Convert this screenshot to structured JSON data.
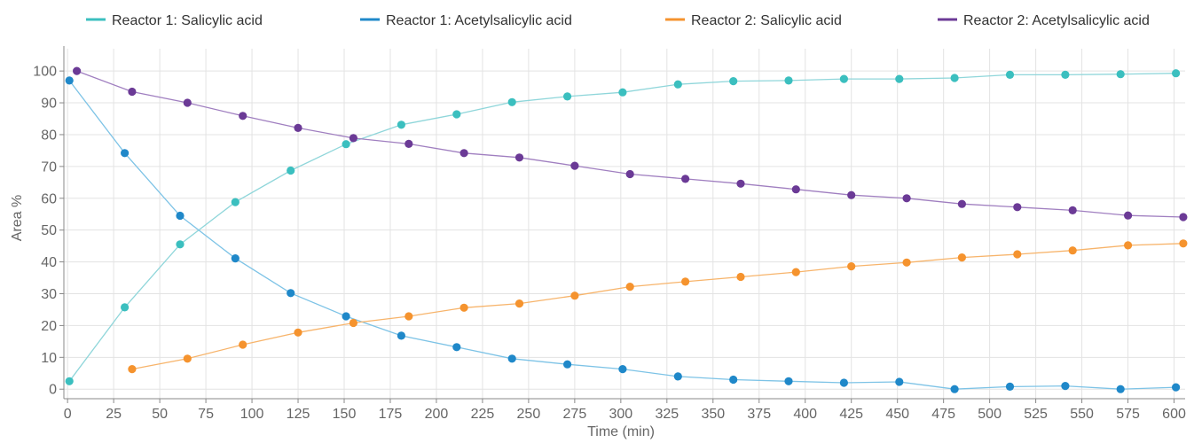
{
  "chart_data": {
    "type": "line",
    "title": "",
    "xlabel": "Time (min)",
    "ylabel": "Area %",
    "xlim": [
      -2,
      606
    ],
    "ylim": [
      -3,
      107
    ],
    "xticks": [
      0,
      25,
      50,
      75,
      100,
      125,
      150,
      175,
      200,
      225,
      250,
      275,
      300,
      325,
      350,
      375,
      400,
      425,
      450,
      475,
      500,
      525,
      550,
      575,
      600
    ],
    "yticks": [
      0,
      10,
      20,
      30,
      40,
      50,
      60,
      70,
      80,
      90,
      100
    ],
    "grid": true,
    "legend_position": "top",
    "series": [
      {
        "name": "Reactor 1: Salicylic acid",
        "color": "#3bbfbf",
        "line_color": "#8fd6da",
        "points": [
          [
            1,
            2.5
          ],
          [
            31,
            25.7
          ],
          [
            61,
            45.5
          ],
          [
            91,
            58.8
          ],
          [
            121,
            68.7
          ],
          [
            151,
            77.0
          ],
          [
            181,
            83.1
          ],
          [
            211,
            86.4
          ],
          [
            241,
            90.2
          ],
          [
            271,
            92.0
          ],
          [
            301,
            93.3
          ],
          [
            331,
            95.8
          ],
          [
            361,
            96.8
          ],
          [
            391,
            97.0
          ],
          [
            421,
            97.5
          ],
          [
            451,
            97.5
          ],
          [
            481,
            97.8
          ],
          [
            511,
            98.8
          ],
          [
            541,
            98.8
          ],
          [
            571,
            99.0
          ],
          [
            601,
            99.3
          ]
        ]
      },
      {
        "name": "Reactor 1: Acetylsalicylic acid",
        "color": "#1f88c9",
        "line_color": "#7dc3e6",
        "points": [
          [
            1,
            97.0
          ],
          [
            31,
            74.2
          ],
          [
            61,
            54.5
          ],
          [
            91,
            41.1
          ],
          [
            121,
            30.2
          ],
          [
            151,
            22.9
          ],
          [
            181,
            16.8
          ],
          [
            211,
            13.2
          ],
          [
            241,
            9.6
          ],
          [
            271,
            7.8
          ],
          [
            301,
            6.3
          ],
          [
            331,
            4.0
          ],
          [
            361,
            3.0
          ],
          [
            391,
            2.5
          ],
          [
            421,
            2.0
          ],
          [
            451,
            2.3
          ],
          [
            481,
            0.0
          ],
          [
            511,
            0.8
          ],
          [
            541,
            1.0
          ],
          [
            571,
            0.0
          ],
          [
            601,
            0.6
          ]
        ]
      },
      {
        "name": "Reactor 2: Salicylic acid",
        "color": "#f5932e",
        "line_color": "#f7b46b",
        "points": [
          [
            35,
            6.3
          ],
          [
            65,
            9.6
          ],
          [
            95,
            14.0
          ],
          [
            125,
            17.8
          ],
          [
            155,
            20.8
          ],
          [
            185,
            22.9
          ],
          [
            215,
            25.6
          ],
          [
            245,
            26.9
          ],
          [
            275,
            29.4
          ],
          [
            305,
            32.2
          ],
          [
            335,
            33.8
          ],
          [
            365,
            35.3
          ],
          [
            395,
            36.8
          ],
          [
            425,
            38.6
          ],
          [
            455,
            39.8
          ],
          [
            485,
            41.4
          ],
          [
            515,
            42.4
          ],
          [
            545,
            43.6
          ],
          [
            575,
            45.2
          ],
          [
            605,
            45.8
          ]
        ]
      },
      {
        "name": "Reactor 2: Acetylsalicylic acid",
        "color": "#6b3a96",
        "line_color": "#a07fc0",
        "points": [
          [
            5,
            100.0
          ],
          [
            35,
            93.5
          ],
          [
            65,
            90.0
          ],
          [
            95,
            85.9
          ],
          [
            125,
            82.1
          ],
          [
            155,
            78.9
          ],
          [
            185,
            77.1
          ],
          [
            215,
            74.2
          ],
          [
            245,
            72.8
          ],
          [
            275,
            70.2
          ],
          [
            305,
            67.6
          ],
          [
            335,
            66.1
          ],
          [
            365,
            64.6
          ],
          [
            395,
            62.8
          ],
          [
            425,
            61.0
          ],
          [
            455,
            60.0
          ],
          [
            485,
            58.2
          ],
          [
            515,
            57.2
          ],
          [
            545,
            56.2
          ],
          [
            575,
            54.6
          ],
          [
            605,
            54.1
          ]
        ]
      }
    ]
  }
}
